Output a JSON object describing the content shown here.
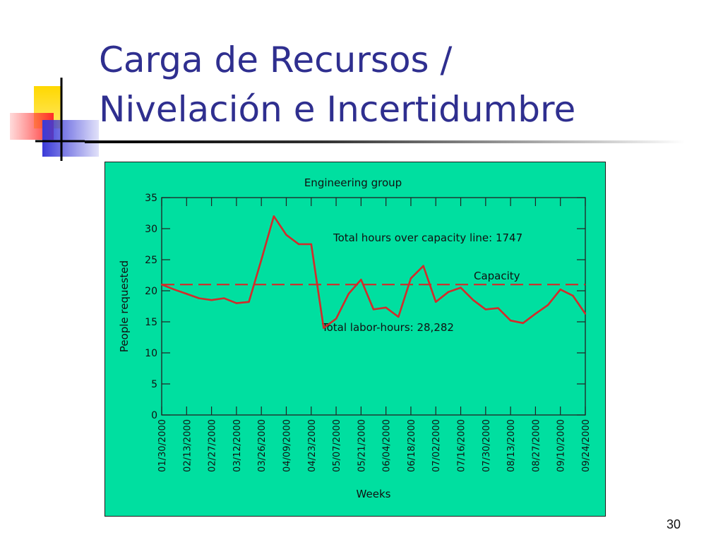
{
  "slide": {
    "title_line1": "Carga de Recursos /",
    "title_line2": "Nivelación e Incertidumbre",
    "page_number": "30"
  },
  "colors": {
    "title": "#2f2f8f",
    "frame": "#00dfa0",
    "series": "#d42a2a",
    "capacity": "#d42a2a",
    "logo_yellow": "#ffd800",
    "logo_red": "#ff4a4a",
    "logo_blue": "#3a3ad8"
  },
  "chart_data": {
    "type": "line",
    "title": "Engineering group",
    "xlabel": "Weeks",
    "ylabel": "People requested",
    "ylim": [
      0,
      35
    ],
    "yticks": [
      0,
      5,
      10,
      15,
      20,
      25,
      30,
      35
    ],
    "xtick_labels": [
      "01/30/2000",
      "02/13/2000",
      "02/27/2000",
      "03/12/2000",
      "03/26/2000",
      "04/09/2000",
      "04/23/2000",
      "05/07/2000",
      "05/21/2000",
      "06/04/2000",
      "06/18/2000",
      "07/02/2000",
      "07/16/2000",
      "07/30/2000",
      "08/13/2000",
      "08/27/2000",
      "09/10/2000",
      "09/24/2000"
    ],
    "weeks": [
      "01/30/2000",
      "02/06/2000",
      "02/13/2000",
      "02/20/2000",
      "02/27/2000",
      "03/05/2000",
      "03/12/2000",
      "03/19/2000",
      "03/26/2000",
      "04/02/2000",
      "04/09/2000",
      "04/16/2000",
      "04/23/2000",
      "04/30/2000",
      "05/07/2000",
      "05/14/2000",
      "05/21/2000",
      "05/28/2000",
      "06/04/2000",
      "06/11/2000",
      "06/18/2000",
      "06/25/2000",
      "07/02/2000",
      "07/09/2000",
      "07/16/2000",
      "07/23/2000",
      "07/30/2000",
      "08/06/2000",
      "08/13/2000",
      "08/20/2000",
      "08/27/2000",
      "09/03/2000",
      "09/10/2000",
      "09/17/2000",
      "09/24/2000"
    ],
    "series": [
      {
        "values": [
          21.0,
          20.2,
          19.5,
          18.8,
          18.5,
          18.8,
          18.0,
          18.2,
          25.0,
          32.0,
          29.0,
          27.5,
          27.5,
          14.0,
          15.5,
          19.5,
          21.8,
          17.0,
          17.3,
          15.8,
          22.0,
          24.0,
          18.2,
          19.8,
          20.5,
          18.5,
          17.0,
          17.2,
          15.2,
          14.8,
          16.3,
          17.7,
          20.2,
          19.2,
          16.3
        ]
      }
    ],
    "capacity": {
      "label": "Capacity",
      "value": 21
    },
    "annotations": [
      {
        "text": "Total hours over capacity line: 1747"
      },
      {
        "text": "Total labor-hours: 28,282"
      }
    ],
    "grid": false
  }
}
